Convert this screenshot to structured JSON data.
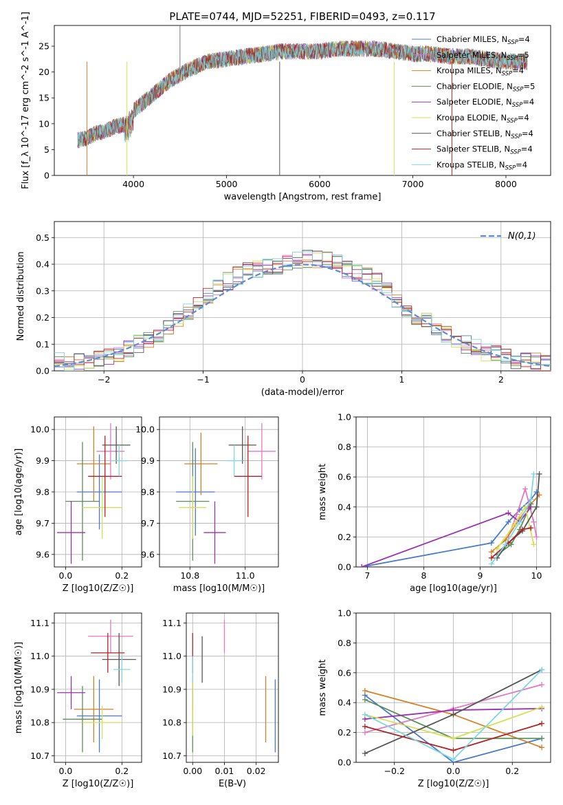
{
  "chart_data": [
    {
      "id": "spectrum",
      "type": "line",
      "title": "PLATE=0744, MJD=52251, FIBERID=0493, z=0.117",
      "xlabel": "wavelength [Angstrom, rest frame]",
      "ylabel": "Flux [f_λ 10^-17 erg cm^-2 s^-1 A^-1]",
      "xlim": [
        3150,
        8480
      ],
      "ylim": [
        0,
        29
      ],
      "xticks": [
        4000,
        5000,
        6000,
        7000,
        8000
      ],
      "yticks": [
        0,
        5,
        10,
        15,
        20,
        25
      ],
      "legend_position": "right",
      "spectrum_envelope": {
        "x": [
          3400,
          3500,
          3600,
          3700,
          3800,
          3900,
          4000,
          4100,
          4200,
          4300,
          4400,
          4500,
          4600,
          4800,
          5000,
          5200,
          5400,
          5600,
          5800,
          6000,
          6200,
          6400,
          6600,
          6800,
          7000,
          7200,
          7400,
          7600,
          7800,
          8000,
          8230
        ],
        "y": [
          6.8,
          7.2,
          8.2,
          8.5,
          9.5,
          9.8,
          12.5,
          14.0,
          15.5,
          17.0,
          18.5,
          19.5,
          20.5,
          22.0,
          22.5,
          23.0,
          23.5,
          24.0,
          24.0,
          24.0,
          24.5,
          24.5,
          24.5,
          24.0,
          23.5,
          23.5,
          23.0,
          23.0,
          22.5,
          22.0,
          22.0
        ]
      },
      "series": [
        {
          "name": "Chabrier MILES, N_SSP=4",
          "color": "#4878cf"
        },
        {
          "name": "Salpeter MILES, N_SSP=5",
          "color": "#e377c2"
        },
        {
          "name": "Kroupa MILES, N_SSP=4",
          "color": "#d97e23"
        },
        {
          "name": "Chabrier ELODIE, N_SSP=5",
          "color": "#5a8f5a"
        },
        {
          "name": "Salpeter ELODIE, N_SSP=4",
          "color": "#9b30b0"
        },
        {
          "name": "Kroupa ELODIE, N_SSP=4",
          "color": "#d4e157"
        },
        {
          "name": "Chabrier STELIB, N_SSP=4",
          "color": "#555555"
        },
        {
          "name": "Salpeter STELIB, N_SSP=4",
          "color": "#b22222"
        },
        {
          "name": "Kroupa STELIB, N_SSP=4",
          "color": "#7fd6e0"
        }
      ]
    },
    {
      "id": "residuals",
      "type": "step",
      "xlabel": "(data-model)/error",
      "ylabel": "Normed distribution",
      "xlim": [
        -2.5,
        2.5
      ],
      "ylim": [
        0,
        0.56
      ],
      "xticks": [
        -2,
        -1,
        0,
        1,
        2
      ],
      "yticks": [
        0.0,
        0.1,
        0.2,
        0.3,
        0.4,
        0.5
      ],
      "gaussian_label": "N(0,1)",
      "gaussian_color": "#5b8bd6",
      "histogram_envelope": {
        "x": [
          -2.5,
          -2.3,
          -2.1,
          -1.9,
          -1.7,
          -1.5,
          -1.3,
          -1.1,
          -0.9,
          -0.7,
          -0.5,
          -0.3,
          -0.1,
          0.1,
          0.3,
          0.5,
          0.7,
          0.9,
          1.1,
          1.3,
          1.5,
          1.7,
          1.9,
          2.1,
          2.3,
          2.5
        ],
        "y": [
          0.035,
          0.03,
          0.045,
          0.06,
          0.09,
          0.13,
          0.18,
          0.24,
          0.3,
          0.35,
          0.38,
          0.39,
          0.41,
          0.42,
          0.42,
          0.37,
          0.35,
          0.28,
          0.22,
          0.17,
          0.12,
          0.09,
          0.065,
          0.045,
          0.035,
          0.025
        ]
      }
    },
    {
      "id": "age-vs-Z",
      "type": "errorbar",
      "xlabel": "Z [log10(Z/Z☉)]",
      "ylabel": "age  [log10(age/yr)]",
      "xlim": [
        -0.04,
        0.27
      ],
      "ylim": [
        9.56,
        10.04
      ],
      "xticks": [
        0.0,
        0.2
      ],
      "yticks": [
        9.6,
        9.7,
        9.8,
        9.9,
        10.0
      ],
      "points": [
        {
          "x": 0.12,
          "y": 9.8,
          "xerr": 0.08,
          "yerr": 0.12,
          "color": "#4878cf"
        },
        {
          "x": 0.16,
          "y": 9.93,
          "xerr": 0.05,
          "yerr": 0.09,
          "color": "#e377c2"
        },
        {
          "x": 0.1,
          "y": 9.89,
          "xerr": 0.06,
          "yerr": 0.12,
          "color": "#d97e23"
        },
        {
          "x": 0.06,
          "y": 9.77,
          "xerr": 0.06,
          "yerr": 0.19,
          "color": "#5a8f5a"
        },
        {
          "x": 0.02,
          "y": 9.67,
          "xerr": 0.05,
          "yerr": 0.1,
          "color": "#9b30b0"
        },
        {
          "x": 0.13,
          "y": 9.75,
          "xerr": 0.07,
          "yerr": 0.1,
          "color": "#d4e157"
        },
        {
          "x": 0.18,
          "y": 9.95,
          "xerr": 0.05,
          "yerr": 0.06,
          "color": "#555555"
        },
        {
          "x": 0.14,
          "y": 9.85,
          "xerr": 0.06,
          "yerr": 0.13,
          "color": "#b22222"
        },
        {
          "x": 0.19,
          "y": 9.9,
          "xerr": 0.03,
          "yerr": 0.05,
          "color": "#7fd6e0"
        }
      ]
    },
    {
      "id": "age-vs-mass",
      "type": "errorbar",
      "xlabel": "mass [log10(M/M☉)]",
      "ylabel": "",
      "xlim": [
        10.69,
        11.12
      ],
      "ylim": [
        9.56,
        10.04
      ],
      "xticks": [
        10.8,
        11.0
      ],
      "yticks": [
        9.6,
        9.7,
        9.8,
        9.9,
        10.0
      ],
      "points": [
        {
          "x": 10.82,
          "y": 9.8,
          "xerr": 0.07,
          "yerr": 0.14,
          "color": "#4878cf"
        },
        {
          "x": 11.06,
          "y": 9.93,
          "xerr": 0.05,
          "yerr": 0.09,
          "color": "#e377c2"
        },
        {
          "x": 10.84,
          "y": 9.89,
          "xerr": 0.06,
          "yerr": 0.1,
          "color": "#d97e23"
        },
        {
          "x": 10.81,
          "y": 9.77,
          "xerr": 0.06,
          "yerr": 0.19,
          "color": "#5a8f5a"
        },
        {
          "x": 10.89,
          "y": 9.67,
          "xerr": 0.04,
          "yerr": 0.1,
          "color": "#9b30b0"
        },
        {
          "x": 10.81,
          "y": 9.75,
          "xerr": 0.05,
          "yerr": 0.1,
          "color": "#d4e157"
        },
        {
          "x": 10.99,
          "y": 9.95,
          "xerr": 0.05,
          "yerr": 0.06,
          "color": "#555555"
        },
        {
          "x": 11.01,
          "y": 9.85,
          "xerr": 0.05,
          "yerr": 0.13,
          "color": "#b22222"
        },
        {
          "x": 10.96,
          "y": 9.9,
          "xerr": 0.03,
          "yerr": 0.05,
          "color": "#7fd6e0"
        }
      ]
    },
    {
      "id": "weight-vs-age",
      "type": "line",
      "xlabel": "age  [log10(age/yr)]",
      "ylabel": "mass weight",
      "xlim": [
        6.8,
        10.25
      ],
      "ylim": [
        0,
        1.0
      ],
      "xticks": [
        7,
        8,
        9,
        10
      ],
      "yticks": [
        0.0,
        0.2,
        0.4,
        0.6,
        0.8,
        1.0
      ],
      "series": [
        {
          "color": "#4878cf",
          "x": [
            6.9,
            9.2,
            9.5,
            9.7,
            9.9,
            10.0
          ],
          "y": [
            0.0,
            0.16,
            0.3,
            0.38,
            0.45,
            0.5
          ]
        },
        {
          "color": "#e377c2",
          "x": [
            9.5,
            9.65,
            9.8,
            9.95,
            10.0
          ],
          "y": [
            0.2,
            0.35,
            0.52,
            0.3,
            0.2
          ]
        },
        {
          "color": "#d97e23",
          "x": [
            9.2,
            9.45,
            9.7,
            9.85,
            10.05
          ],
          "y": [
            0.1,
            0.18,
            0.32,
            0.4,
            0.48
          ]
        },
        {
          "color": "#5a8f5a",
          "x": [
            9.3,
            9.55,
            9.7,
            9.9
          ],
          "y": [
            0.08,
            0.15,
            0.25,
            0.42
          ]
        },
        {
          "color": "#9b30b0",
          "x": [
            6.9,
            9.5,
            9.7,
            9.9
          ],
          "y": [
            0.0,
            0.36,
            0.3,
            0.4
          ]
        },
        {
          "color": "#d4e157",
          "x": [
            9.3,
            9.6,
            9.8,
            9.95
          ],
          "y": [
            0.12,
            0.28,
            0.4,
            0.15
          ]
        },
        {
          "color": "#555555",
          "x": [
            9.3,
            9.5,
            9.75,
            10.0,
            10.05
          ],
          "y": [
            0.06,
            0.16,
            0.24,
            0.4,
            0.62
          ]
        },
        {
          "color": "#b22222",
          "x": [
            9.2,
            9.5,
            9.75,
            9.9
          ],
          "y": [
            0.06,
            0.16,
            0.25,
            0.26
          ]
        },
        {
          "color": "#7fd6e0",
          "x": [
            9.2,
            9.45,
            9.7,
            9.9,
            9.95
          ],
          "y": [
            0.02,
            0.15,
            0.3,
            0.45,
            0.62
          ]
        }
      ]
    },
    {
      "id": "mass-vs-Z",
      "type": "errorbar",
      "xlabel": "Z [log10(Z/Z☉)]",
      "ylabel": "mass [log10(M/M☉)]",
      "xlim": [
        -0.04,
        0.27
      ],
      "ylim": [
        10.68,
        11.13
      ],
      "xticks": [
        0.0,
        0.2
      ],
      "yticks": [
        10.7,
        10.8,
        10.9,
        11.0,
        11.1
      ],
      "points": [
        {
          "x": 0.12,
          "y": 10.82,
          "xerr": 0.08,
          "yerr": 0.11,
          "color": "#4878cf"
        },
        {
          "x": 0.16,
          "y": 11.06,
          "xerr": 0.08,
          "yerr": 0.05,
          "color": "#e377c2"
        },
        {
          "x": 0.1,
          "y": 10.84,
          "xerr": 0.07,
          "yerr": 0.1,
          "color": "#d97e23"
        },
        {
          "x": 0.06,
          "y": 10.81,
          "xerr": 0.07,
          "yerr": 0.1,
          "color": "#5a8f5a"
        },
        {
          "x": 0.02,
          "y": 10.89,
          "xerr": 0.05,
          "yerr": 0.05,
          "color": "#9b30b0"
        },
        {
          "x": 0.13,
          "y": 10.8,
          "xerr": 0.07,
          "yerr": 0.05,
          "color": "#d4e157"
        },
        {
          "x": 0.19,
          "y": 10.99,
          "xerr": 0.06,
          "yerr": 0.08,
          "color": "#555555"
        },
        {
          "x": 0.15,
          "y": 11.01,
          "xerr": 0.06,
          "yerr": 0.06,
          "color": "#b22222"
        },
        {
          "x": 0.2,
          "y": 10.96,
          "xerr": 0.03,
          "yerr": 0.04,
          "color": "#7fd6e0"
        }
      ]
    },
    {
      "id": "mass-vs-ebv",
      "type": "errorbar",
      "xlabel": "E(B-V)",
      "ylabel": "",
      "xlim": [
        -0.002,
        0.027
      ],
      "ylim": [
        10.68,
        11.13
      ],
      "xticks": [
        0.0,
        0.01,
        0.02
      ],
      "yticks": [
        10.7,
        10.8,
        10.9,
        11.0,
        11.1
      ],
      "points": [
        {
          "x": 0.026,
          "y": 10.82,
          "xerr": 0,
          "yerr": 0.11,
          "color": "#4878cf"
        },
        {
          "x": 0.01,
          "y": 11.06,
          "xerr": 0,
          "yerr": 0.05,
          "color": "#e377c2"
        },
        {
          "x": 0.023,
          "y": 10.84,
          "xerr": 0,
          "yerr": 0.1,
          "color": "#d97e23"
        },
        {
          "x": 0.0,
          "y": 10.81,
          "xerr": 0,
          "yerr": 0.1,
          "color": "#5a8f5a"
        },
        {
          "x": 0.0,
          "y": 10.89,
          "xerr": 0,
          "yerr": 0.05,
          "color": "#9b30b0"
        },
        {
          "x": 0.0,
          "y": 10.85,
          "xerr": 0,
          "yerr": 0.09,
          "color": "#d4e157"
        },
        {
          "x": 0.003,
          "y": 10.99,
          "xerr": 0,
          "yerr": 0.07,
          "color": "#555555"
        },
        {
          "x": 0.0,
          "y": 11.01,
          "xerr": 0,
          "yerr": 0.06,
          "color": "#b22222"
        },
        {
          "x": 0.0,
          "y": 10.96,
          "xerr": 0,
          "yerr": 0.04,
          "color": "#7fd6e0"
        }
      ]
    },
    {
      "id": "weight-vs-Z",
      "type": "line",
      "xlabel": "Z [log10(Z/Z☉)]",
      "ylabel": "mass weight",
      "xlim": [
        -0.33,
        0.33
      ],
      "ylim": [
        0,
        1.0
      ],
      "xticks": [
        -0.2,
        0.0,
        0.2
      ],
      "yticks": [
        0.0,
        0.2,
        0.4,
        0.6,
        0.8,
        1.0
      ],
      "series": [
        {
          "color": "#4878cf",
          "x": [
            -0.3,
            0.0,
            0.3
          ],
          "y": [
            0.45,
            0.0,
            0.16
          ]
        },
        {
          "color": "#e377c2",
          "x": [
            -0.3,
            0.0,
            0.3
          ],
          "y": [
            0.2,
            0.36,
            0.52
          ]
        },
        {
          "color": "#d97e23",
          "x": [
            -0.3,
            0.0,
            0.3
          ],
          "y": [
            0.48,
            0.32,
            0.1
          ]
        },
        {
          "color": "#5a8f5a",
          "x": [
            -0.3,
            0.0,
            0.3
          ],
          "y": [
            0.42,
            0.16,
            0.16
          ]
        },
        {
          "color": "#9b30b0",
          "x": [
            -0.3,
            0.0,
            0.3
          ],
          "y": [
            0.29,
            0.35,
            0.36
          ]
        },
        {
          "color": "#d4e157",
          "x": [
            -0.3,
            0.0,
            0.3
          ],
          "y": [
            0.32,
            0.16,
            0.37
          ]
        },
        {
          "color": "#555555",
          "x": [
            -0.3,
            0.0,
            0.3
          ],
          "y": [
            0.06,
            0.32,
            0.62
          ]
        },
        {
          "color": "#b22222",
          "x": [
            -0.3,
            0.0,
            0.3
          ],
          "y": [
            0.24,
            0.08,
            0.26
          ]
        },
        {
          "color": "#7fd6e0",
          "x": [
            -0.3,
            0.0,
            0.3
          ],
          "y": [
            0.32,
            0.02,
            0.62
          ]
        }
      ]
    }
  ]
}
